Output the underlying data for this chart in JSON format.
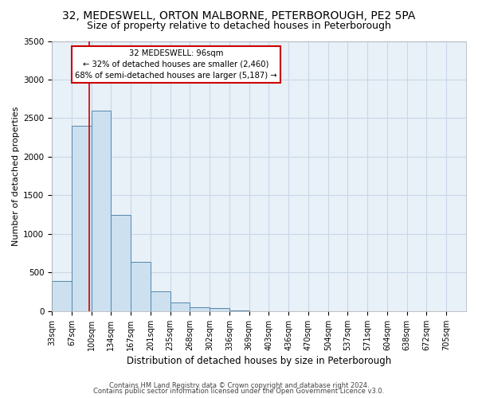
{
  "title1": "32, MEDESWELL, ORTON MALBORNE, PETERBOROUGH, PE2 5PA",
  "title2": "Size of property relative to detached houses in Peterborough",
  "xlabel": "Distribution of detached houses by size in Peterborough",
  "ylabel": "Number of detached properties",
  "footer1": "Contains HM Land Registry data © Crown copyright and database right 2024.",
  "footer2": "Contains public sector information licensed under the Open Government Licence v3.0.",
  "bin_labels": [
    "33sqm",
    "67sqm",
    "100sqm",
    "134sqm",
    "167sqm",
    "201sqm",
    "235sqm",
    "268sqm",
    "302sqm",
    "336sqm",
    "369sqm",
    "403sqm",
    "436sqm",
    "470sqm",
    "504sqm",
    "537sqm",
    "571sqm",
    "604sqm",
    "638sqm",
    "672sqm",
    "705sqm"
  ],
  "bar_values": [
    390,
    2400,
    2600,
    1250,
    640,
    260,
    110,
    55,
    40,
    15,
    0,
    0,
    0,
    0,
    0,
    0,
    0,
    0,
    0,
    0,
    0
  ],
  "bar_color": "#cce0f0",
  "bar_edge_color": "#5588aa",
  "annotation_title": "32 MEDESWELL: 96sqm",
  "annotation_line1": "← 32% of detached houses are smaller (2,460)",
  "annotation_line2": "68% of semi-detached houses are larger (5,187) →",
  "ylim": [
    0,
    3500
  ],
  "yticks": [
    0,
    500,
    1000,
    1500,
    2000,
    2500,
    3000,
    3500
  ],
  "background_color": "#ffffff",
  "plot_background": "#e8f0f8",
  "grid_color": "#c8d8e8",
  "annotation_box_color": "#ffffff",
  "annotation_box_edge": "#cc0000",
  "marker_line_color": "#cc0000",
  "title1_fontsize": 10,
  "title2_fontsize": 9,
  "xlabel_fontsize": 8.5,
  "ylabel_fontsize": 8,
  "tick_fontsize": 7,
  "footer_fontsize": 6
}
